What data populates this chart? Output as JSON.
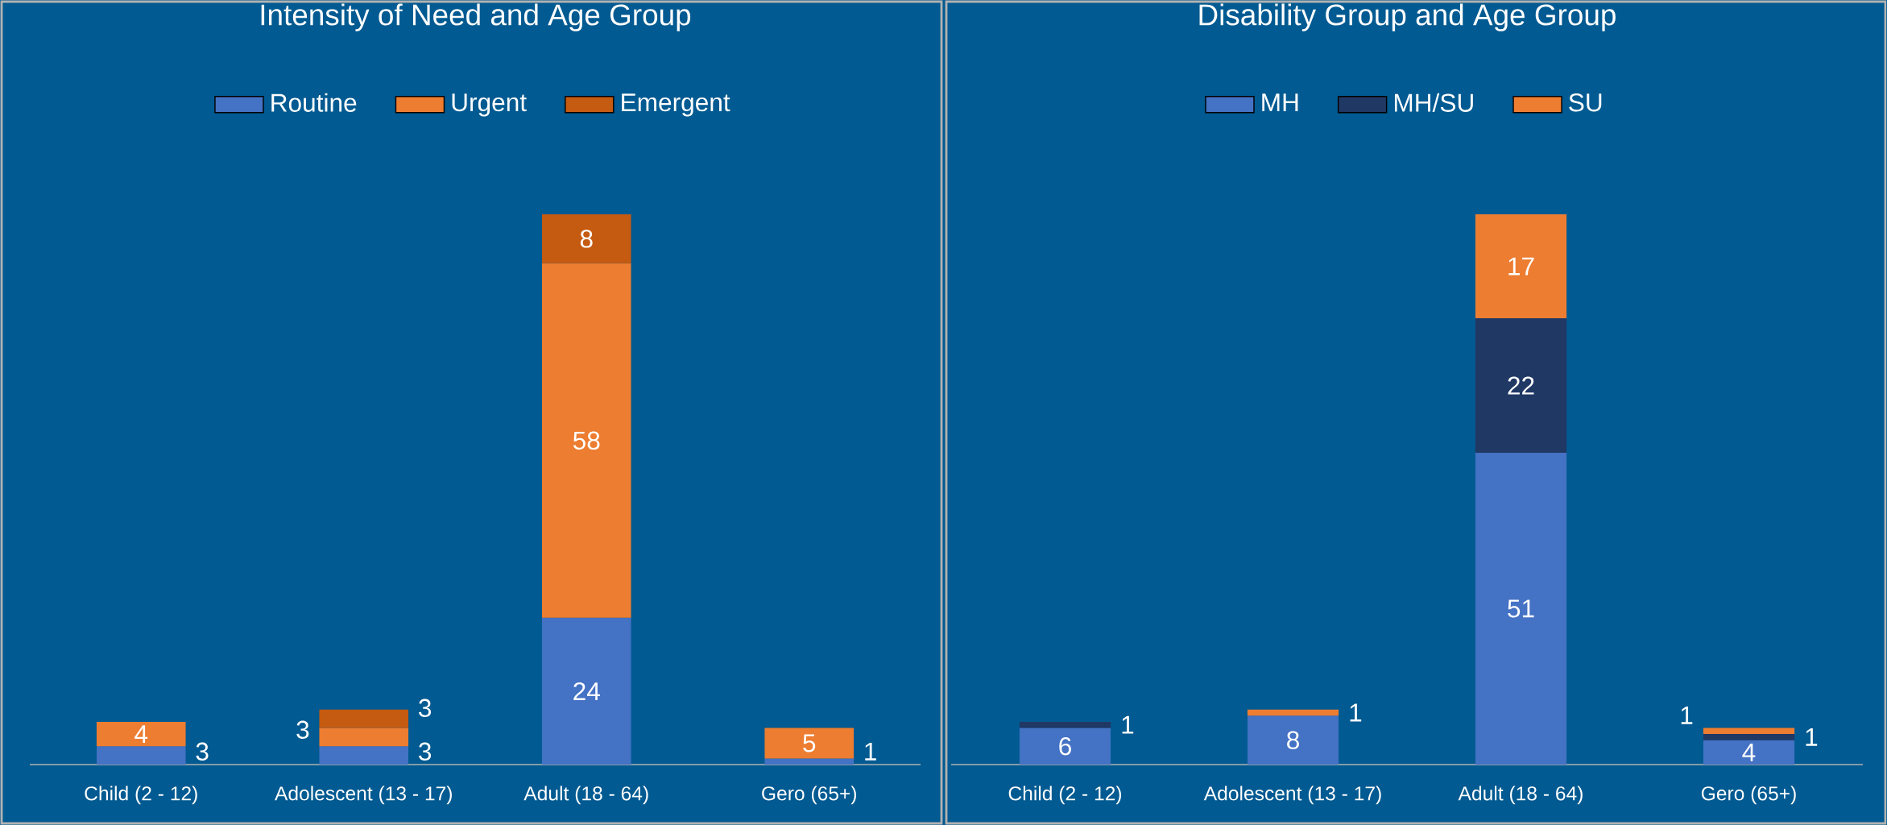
{
  "chart_data": [
    {
      "type": "bar",
      "title": "Intensity of Need and Age Group",
      "stacked": true,
      "data_labels": true,
      "legend": "top",
      "categories": [
        "Child (2 - 12)",
        "Adolescent (13 - 17)",
        "Adult (18 - 64)",
        "Gero (65+)"
      ],
      "series": [
        {
          "name": "Routine",
          "color": "#4472c4",
          "values": [
            3,
            3,
            24,
            1
          ]
        },
        {
          "name": "Urgent",
          "color": "#ed7d31",
          "values": [
            4,
            3,
            58,
            5
          ]
        },
        {
          "name": "Emergent",
          "color": "#c55a11",
          "values": [
            null,
            3,
            8,
            null
          ]
        }
      ]
    },
    {
      "type": "bar",
      "title": "Disability Group and Age Group",
      "stacked": true,
      "data_labels": true,
      "legend": "top",
      "categories": [
        "Child (2 - 12)",
        "Adolescent (13 - 17)",
        "Adult (18 - 64)",
        "Gero (65+)"
      ],
      "series": [
        {
          "name": "MH",
          "color": "#4472c4",
          "values": [
            6,
            8,
            51,
            4
          ]
        },
        {
          "name": "MH/SU",
          "color": "#203864",
          "values": [
            1,
            null,
            22,
            1
          ]
        },
        {
          "name": "SU",
          "color": "#ed7d31",
          "values": [
            null,
            1,
            17,
            1
          ]
        }
      ]
    }
  ]
}
